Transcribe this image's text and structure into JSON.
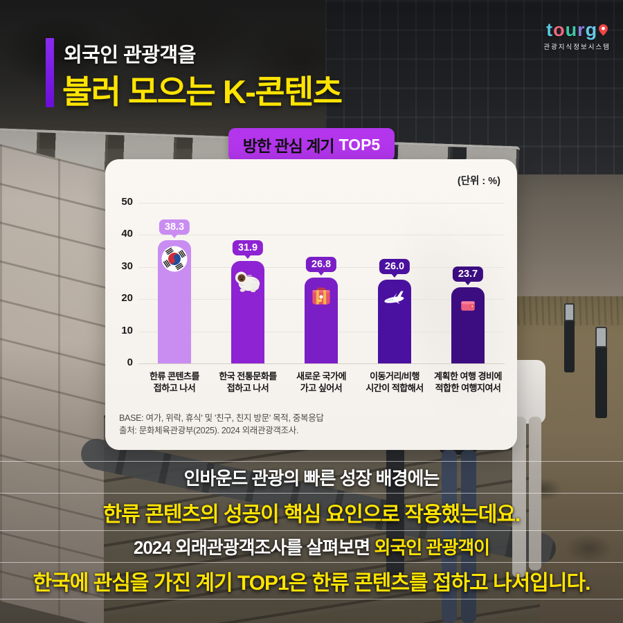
{
  "logo": {
    "letters": [
      "t",
      "o",
      "u",
      "r",
      "g"
    ],
    "letter_colors": [
      "#5bc6e0",
      "#ee6a80",
      "#3fc7a6",
      "#8a7fe0",
      "#66c9ea"
    ],
    "pin_color": "#f04545",
    "subtitle": "관광지식정보시스템"
  },
  "header": {
    "line1": "외국인 관광객을",
    "line2": "불러 모으는 K-콘텐츠"
  },
  "badge": {
    "label": "방한 관심 계기",
    "highlight": "TOP5"
  },
  "chart_data": {
    "type": "bar",
    "title": "방한 관심 계기 TOP5",
    "unit": "(단위 : %)",
    "categories": [
      [
        "한류 콘텐츠를",
        "접하고 나서"
      ],
      [
        "한국 전통문화를",
        "접하고 나서"
      ],
      [
        "새로운 국가에",
        "가고 싶어서"
      ],
      [
        "이동거리/비행",
        "시간이 적합해서"
      ],
      [
        "계획한 여행 경비에",
        "적합한 여행지여서"
      ]
    ],
    "values": [
      38.3,
      31.9,
      26.8,
      26.0,
      23.7
    ],
    "value_labels": [
      "38.3",
      "31.9",
      "26.8",
      "26.0",
      "23.7"
    ],
    "bar_colors": [
      "#c98df2",
      "#8d23d2",
      "#7a1ec6",
      "#4a11a0",
      "#3b0d80"
    ],
    "icons": [
      "korean-flag-icon",
      "white-plush-dog-icon",
      "suitcase-icon",
      "airplane-icon",
      "wallet-icon"
    ],
    "xlabel": "",
    "ylabel": "",
    "ylim": [
      0,
      50
    ],
    "yticks": [
      0,
      10,
      20,
      30,
      40,
      50
    ],
    "grid": true,
    "legend": "none",
    "base_note": "BASE: 여가, 위락, 휴식' 및 '친구, 친지 방문' 목적, 중복응답",
    "source_note": "출처: 문화체육관광부(2025). 2024 외래관광객조사."
  },
  "summary": {
    "lines": [
      {
        "size": "sm",
        "segments": [
          {
            "text": "인바운드 관광의 빠른 성장 배경에는",
            "color": "white"
          }
        ]
      },
      {
        "size": "lg",
        "segments": [
          {
            "text": "한류 콘텐츠의 성공이 핵심 요인으로 작용했는데요.",
            "color": "yellow"
          }
        ]
      },
      {
        "size": "sm",
        "segments": [
          {
            "text": "2024 외래관광객조사를 살펴보면 ",
            "color": "white"
          },
          {
            "text": "외국인 관광객이",
            "color": "yellow"
          }
        ]
      },
      {
        "size": "lg",
        "segments": [
          {
            "text": "한국에 관심을 가진 계기 TOP1은 한류 콘텐츠를 접하고 나서입니다.",
            "color": "yellow"
          }
        ]
      }
    ]
  },
  "theme": {
    "title_yellow": "#ffe400",
    "accent_purple": "#7d17f1",
    "badge_magenta": "#b335ec",
    "card_background": "#f8f4f0"
  }
}
